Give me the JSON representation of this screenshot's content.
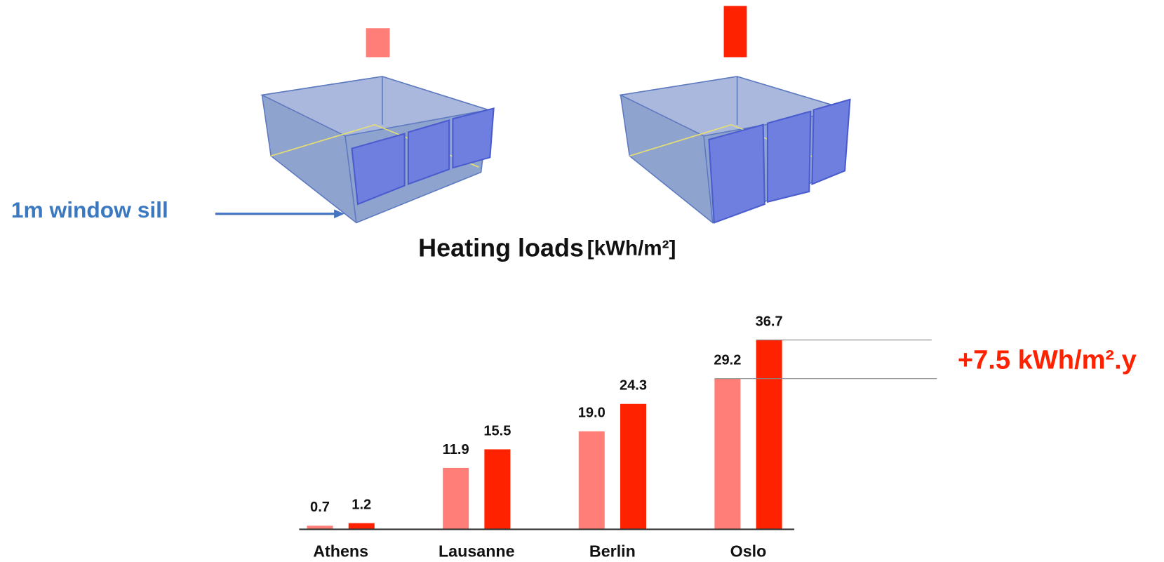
{
  "chart_data": {
    "type": "bar",
    "title": "Heating loads",
    "unit": "[kWh/m²]",
    "side_label": "1m window sill",
    "annotation": "+7.5 kWh/m².y",
    "categories": [
      "Athens",
      "Lausanne",
      "Berlin",
      "Oslo"
    ],
    "series": [
      {
        "color": "#ff7f78",
        "values": [
          0.7,
          11.9,
          19.0,
          29.2
        ],
        "value_labels": [
          "0.7",
          "11.9",
          "19.0",
          "29.2"
        ]
      },
      {
        "color": "#ff2200",
        "values": [
          1.2,
          15.5,
          24.3,
          36.7
        ],
        "value_labels": [
          "1.2",
          "15.5",
          "24.3",
          "36.7"
        ]
      }
    ]
  }
}
